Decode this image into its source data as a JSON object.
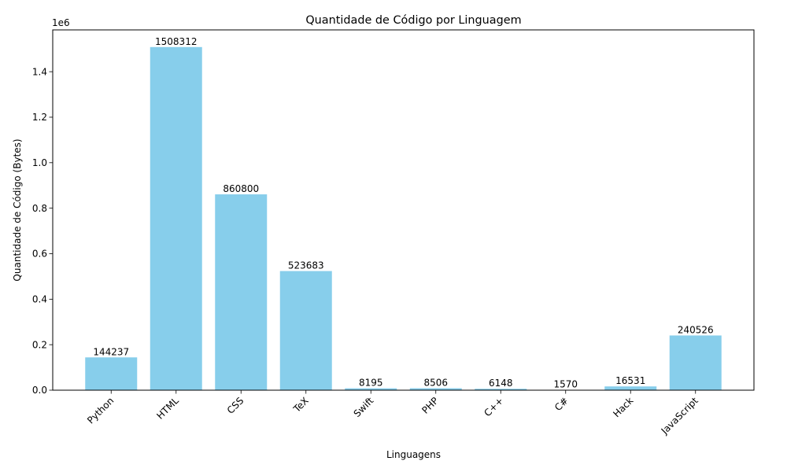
{
  "chart_data": {
    "type": "bar",
    "title": "Quantidade de Código por Linguagem",
    "xlabel": "Linguagens",
    "ylabel": "Quantidade de Código (Bytes)",
    "y_offset_label": "1e6",
    "categories": [
      "Python",
      "HTML",
      "CSS",
      "TeX",
      "Swift",
      "PHP",
      "C++",
      "C#",
      "Hack",
      "JavaScript"
    ],
    "values": [
      144237,
      1508312,
      860800,
      523683,
      8195,
      8506,
      6148,
      1570,
      16531,
      240526
    ],
    "ylim": [
      0,
      1583727.6
    ],
    "yticks": [
      0,
      200000,
      400000,
      600000,
      800000,
      1000000,
      1200000,
      1400000
    ],
    "ytick_labels": [
      "0.0",
      "0.2",
      "0.4",
      "0.6",
      "0.8",
      "1.0",
      "1.2",
      "1.4"
    ],
    "bar_color": "#87ceeb",
    "grid": false,
    "legend": "none"
  }
}
